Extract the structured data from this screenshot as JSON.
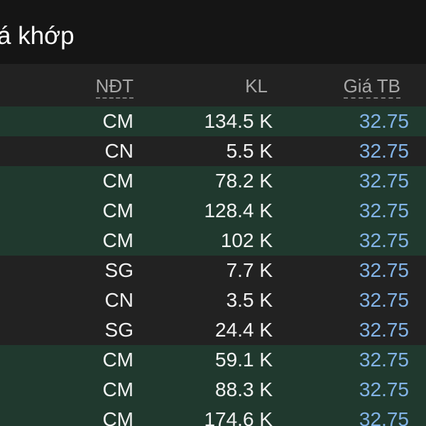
{
  "header": {
    "title": "á khớp"
  },
  "columns": {
    "investor": "NĐT",
    "volume": "KL",
    "avg_price": "Giá TB"
  },
  "colors": {
    "highlight_row": "#20392e",
    "price_text": "#82b3e6",
    "header_text": "#a7a7a7"
  },
  "rows": [
    {
      "investor": "CM",
      "volume": "134.5 K",
      "price": "32.75",
      "highlight": true
    },
    {
      "investor": "CN",
      "volume": "5.5 K",
      "price": "32.75",
      "highlight": false
    },
    {
      "investor": "CM",
      "volume": "78.2 K",
      "price": "32.75",
      "highlight": true
    },
    {
      "investor": "CM",
      "volume": "128.4 K",
      "price": "32.75",
      "highlight": true
    },
    {
      "investor": "CM",
      "volume": "102 K",
      "price": "32.75",
      "highlight": true
    },
    {
      "investor": "SG",
      "volume": "7.7 K",
      "price": "32.75",
      "highlight": false
    },
    {
      "investor": "CN",
      "volume": "3.5 K",
      "price": "32.75",
      "highlight": false
    },
    {
      "investor": "SG",
      "volume": "24.4 K",
      "price": "32.75",
      "highlight": false
    },
    {
      "investor": "CM",
      "volume": "59.1 K",
      "price": "32.75",
      "highlight": true
    },
    {
      "investor": "CM",
      "volume": "88.3 K",
      "price": "32.75",
      "highlight": true
    },
    {
      "investor": "CM",
      "volume": "174.6 K",
      "price": "32.75",
      "highlight": true
    }
  ]
}
